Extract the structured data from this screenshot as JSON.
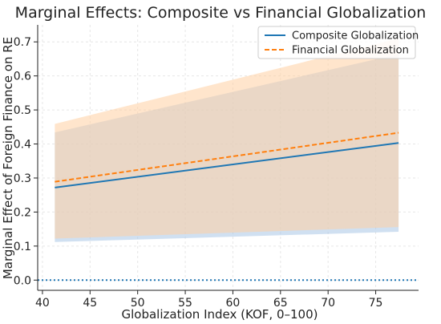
{
  "chart_data": {
    "type": "line",
    "title": "Marginal Effects: Composite vs Financial Globalization",
    "xlabel": "Globalization Index (KOF, 0–100)",
    "ylabel": "Marginal Effect of Foreign Finance on RE",
    "xlim": [
      39.5,
      79.5
    ],
    "ylim": [
      -0.03,
      0.75
    ],
    "x_ticks": [
      40,
      45,
      50,
      55,
      60,
      65,
      70,
      75
    ],
    "y_ticks": [
      0.0,
      0.1,
      0.2,
      0.3,
      0.4,
      0.5,
      0.6,
      0.7
    ],
    "y_tick_labels": [
      "0.0",
      "0.1",
      "0.2",
      "0.3",
      "0.4",
      "0.5",
      "0.6",
      "0.7"
    ],
    "grid": true,
    "legend_position": "top-right",
    "reference_line": {
      "y": 0.0,
      "style": "dotted",
      "color": "#1f77b4"
    },
    "series": [
      {
        "name": "Composite Globalization",
        "color": "#1f77b4",
        "style": "solid",
        "x": [
          41.3,
          77.4
        ],
        "y": [
          0.272,
          0.403
        ],
        "ci_lower": [
          0.112,
          0.142
        ],
        "ci_upper": [
          0.434,
          0.664
        ],
        "band_color": "#a9c6e6"
      },
      {
        "name": "Financial Globalization",
        "color": "#ff7f0e",
        "style": "dashed",
        "x": [
          41.3,
          77.4
        ],
        "y": [
          0.289,
          0.433
        ],
        "ci_lower": [
          0.122,
          0.156
        ],
        "ci_upper": [
          0.459,
          0.71
        ],
        "band_color": "#ffcfa3"
      }
    ]
  }
}
